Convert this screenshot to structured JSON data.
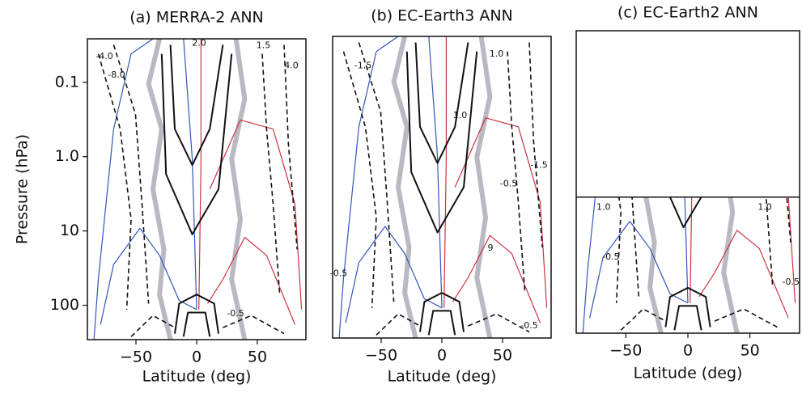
{
  "chart_data": [
    {
      "type": "contour",
      "title": "(a) MERRA-2 ANN",
      "xlabel": "Latitude (deg)",
      "ylabel": "Pressure (hPa)",
      "xlim": [
        -90,
        90
      ],
      "xticks": [
        {
          "value": -50,
          "label": "−50"
        },
        0,
        50
      ],
      "ylim": [
        290,
        0.026
      ],
      "yscale": "log",
      "yticks": [
        0.1,
        {
          "value": 1,
          "label": "1.0"
        },
        10,
        100
      ],
      "contour_labels": [
        {
          "text": "-4.0",
          "lat": -76,
          "p": 0.045
        },
        {
          "text": "-8.0",
          "lat": -66,
          "p": 0.08
        },
        {
          "text": "2.0",
          "lat": 2,
          "p": 0.03
        },
        {
          "text": "1.5",
          "lat": 55,
          "p": 0.032
        },
        {
          "text": "4.0",
          "lat": 78,
          "p": 0.06
        },
        {
          "text": "-0.5",
          "lat": 32,
          "p": 130
        }
      ]
    },
    {
      "type": "contour",
      "title": "(b) EC-Earth3 ANN",
      "xlabel": "Latitude (deg)",
      "xlim": [
        -90,
        90
      ],
      "xticks": [
        {
          "value": -50,
          "label": "−50"
        },
        0,
        50
      ],
      "ylim": [
        290,
        0.026
      ],
      "yscale": "log",
      "contour_labels": [
        {
          "text": "-1.5",
          "lat": -65,
          "p": 0.065
        },
        {
          "text": "1.0",
          "lat": 45,
          "p": 0.045
        },
        {
          "text": "1.0",
          "lat": 15,
          "p": 0.3
        },
        {
          "text": "-0.5",
          "lat": 55,
          "p": 2.5
        },
        {
          "text": "-1.5",
          "lat": 80,
          "p": 1.4
        },
        {
          "text": "-0.5",
          "lat": -85,
          "p": 40
        },
        {
          "text": "9",
          "lat": 40,
          "p": 18
        },
        {
          "text": "-0.5",
          "lat": 72,
          "p": 200
        }
      ]
    },
    {
      "type": "contour",
      "title": "(c) EC-Earth2 ANN",
      "xlabel": "Latitude (deg)",
      "xlim": [
        -90,
        90
      ],
      "xticks": [
        {
          "value": -50,
          "label": "−50"
        },
        0,
        50
      ],
      "ylim": [
        290,
        0.026
      ],
      "yscale": "log",
      "contour_labels": [
        {
          "text": "1.0",
          "lat": -68,
          "p": 6
        },
        {
          "text": "-0.5",
          "lat": -62,
          "p": 28
        },
        {
          "text": "1.0",
          "lat": 62,
          "p": 6
        },
        {
          "text": "-0.5",
          "lat": 83,
          "p": 60
        }
      ]
    }
  ]
}
